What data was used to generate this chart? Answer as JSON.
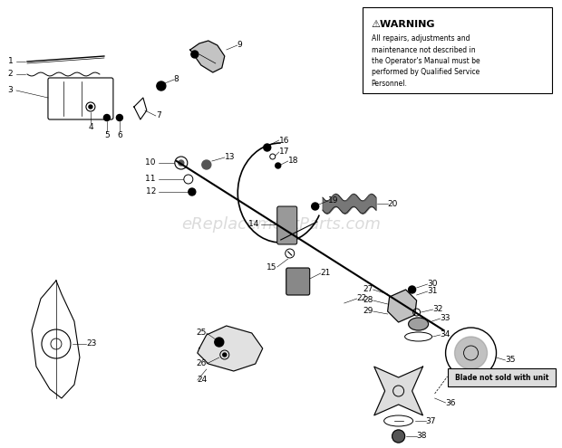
{
  "bg_color": "#ffffff",
  "watermark": "eReplacementParts.com",
  "warning_title": "⚠WARNING",
  "warning_text": "All repairs, adjustments and\nmaintenance not described in\nthe Operator's Manual must be\nperformed by Qualified Service\nPersonnel.",
  "blade_note": "Blade not sold with unit",
  "fig_w": 6.2,
  "fig_h": 4.95,
  "dpi": 100
}
